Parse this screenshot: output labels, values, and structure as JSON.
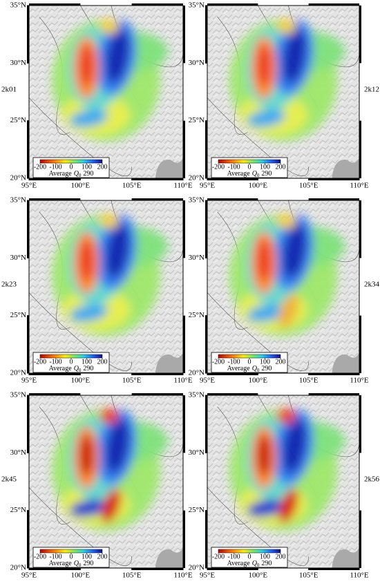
{
  "axes": {
    "lon": [
      {
        "value": 95,
        "label": "95°E"
      },
      {
        "value": 100,
        "label": "100°E"
      },
      {
        "value": 105,
        "label": "105°E"
      },
      {
        "value": 110,
        "label": "110°E"
      }
    ],
    "lat": [
      {
        "value": 35,
        "label": "35°N"
      },
      {
        "value": 30,
        "label": "30°N"
      },
      {
        "value": 25,
        "label": "25°N"
      },
      {
        "value": 20,
        "label": "20°N"
      }
    ]
  },
  "colorbar": {
    "ticks": [
      -200,
      -100,
      0,
      100,
      200
    ],
    "title": "Average",
    "symbol": "Q",
    "subscript": "0"
  },
  "panels": [
    {
      "name": "2k01",
      "average": 290
    },
    {
      "name": "2k12",
      "average": 290
    },
    {
      "name": "2k23",
      "average": 290
    },
    {
      "name": "2k34",
      "average": 290
    },
    {
      "name": "2k45",
      "average": 290
    },
    {
      "name": "2k56",
      "average": 290
    }
  ]
}
